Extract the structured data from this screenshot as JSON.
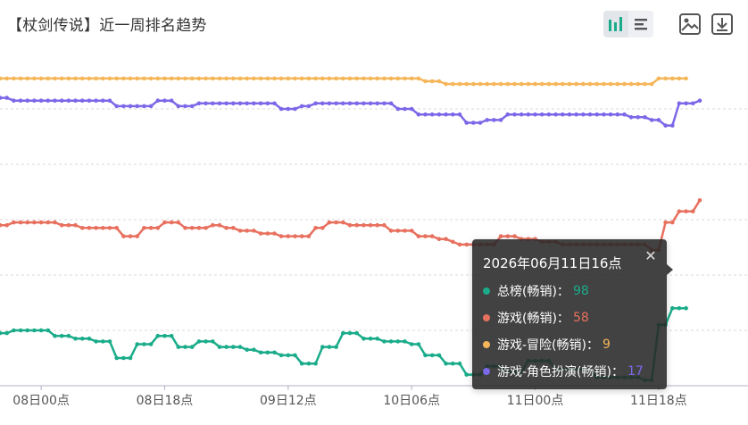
{
  "title": "【杖剑传说】近一周排名趋势",
  "toolbar": {
    "chart_toggle_icons": [
      "bar-chart-icon",
      "list-icon"
    ],
    "image_icon": "image-icon",
    "download_icon": "download-icon"
  },
  "tooltip": {
    "title": "2026年06月11日16点",
    "close_icon": "close-icon",
    "rows": [
      {
        "label": "总榜(畅销)：",
        "value": "98",
        "color": "#1aac8a"
      },
      {
        "label": "游戏(畅销)：",
        "value": "58",
        "color": "#e8705e"
      },
      {
        "label": "游戏-冒险(畅销)：",
        "value": "9",
        "color": "#f5b65a"
      },
      {
        "label": "游戏-角色扮演(畅销)：",
        "value": "17",
        "color": "#7b68e8"
      }
    ]
  },
  "chart_data": {
    "type": "line",
    "title": "【杖剑传说】近一周排名趋势",
    "xlabel": "",
    "ylabel": "",
    "y_inverted": true,
    "ylim": [
      0,
      120
    ],
    "grid": true,
    "legend": "none",
    "x_ticks": [
      "08日00点",
      "08日18点",
      "09日12点",
      "10日06点",
      "11日00点",
      "11日18点"
    ],
    "x_tick_index": [
      6,
      24,
      42,
      60,
      78,
      96
    ],
    "series": [
      {
        "color": "#1aac8a",
        "values": [
          101,
          101,
          100,
          100,
          100,
          100,
          100,
          100,
          102,
          102,
          102,
          103,
          103,
          103,
          104,
          104,
          104,
          110,
          110,
          110,
          105,
          105,
          105,
          102,
          102,
          102,
          106,
          106,
          106,
          104,
          104,
          104,
          106,
          106,
          106,
          106,
          107,
          107,
          108,
          108,
          108,
          109,
          109,
          109,
          112,
          112,
          112,
          106,
          106,
          106,
          101,
          101,
          101,
          103,
          103,
          103,
          104,
          104,
          104,
          104,
          105,
          105,
          109,
          109,
          109,
          112,
          112,
          112,
          116,
          116,
          116,
          113,
          113,
          113,
          115,
          115,
          115,
          111,
          111,
          111,
          111,
          114,
          114,
          114,
          114,
          114,
          114,
          117,
          117,
          117,
          117,
          117,
          117,
          117,
          118,
          118,
          98,
          98,
          92,
          92,
          92
        ]
      },
      {
        "color": "#e8705e",
        "values": [
          62,
          62,
          61,
          61,
          61,
          61,
          61,
          61,
          61,
          62,
          62,
          62,
          63,
          63,
          63,
          63,
          63,
          63,
          66,
          66,
          66,
          63,
          63,
          63,
          61,
          61,
          61,
          63,
          63,
          63,
          63,
          62,
          62,
          63,
          63,
          64,
          64,
          64,
          65,
          65,
          65,
          66,
          66,
          66,
          66,
          66,
          63,
          63,
          61,
          61,
          61,
          62,
          62,
          62,
          62,
          62,
          62,
          64,
          64,
          64,
          64,
          66,
          66,
          66,
          67,
          67,
          68,
          69,
          69,
          69,
          69,
          69,
          69,
          66,
          66,
          66,
          67,
          67,
          67,
          68,
          68,
          68,
          69,
          69,
          69,
          69,
          69,
          69,
          69,
          69,
          69,
          69,
          69,
          69,
          69,
          71,
          71,
          61,
          61,
          57,
          57,
          57,
          53
        ]
      },
      {
        "color": "#f5b65a",
        "values": [
          9,
          9,
          9,
          9,
          9,
          9,
          9,
          9,
          9,
          9,
          9,
          9,
          9,
          9,
          9,
          9,
          9,
          9,
          9,
          9,
          9,
          9,
          9,
          9,
          9,
          9,
          9,
          9,
          9,
          9,
          9,
          9,
          9,
          9,
          9,
          9,
          9,
          9,
          9,
          9,
          9,
          9,
          9,
          9,
          9,
          9,
          9,
          9,
          9,
          9,
          9,
          9,
          9,
          9,
          9,
          9,
          9,
          9,
          9,
          9,
          9,
          9,
          10,
          10,
          10,
          11,
          11,
          11,
          11,
          11,
          11,
          11,
          11,
          11,
          11,
          11,
          11,
          11,
          11,
          11,
          11,
          11,
          11,
          11,
          11,
          11,
          11,
          11,
          11,
          11,
          11,
          11,
          11,
          11,
          11,
          11,
          9,
          9,
          9,
          9,
          9
        ]
      },
      {
        "color": "#7b68e8",
        "values": [
          16,
          16,
          17,
          17,
          17,
          17,
          17,
          17,
          17,
          17,
          17,
          17,
          17,
          17,
          17,
          17,
          17,
          19,
          19,
          19,
          19,
          19,
          19,
          17,
          17,
          17,
          19,
          19,
          19,
          18,
          18,
          18,
          18,
          18,
          18,
          18,
          18,
          18,
          18,
          18,
          18,
          20,
          20,
          20,
          19,
          19,
          18,
          18,
          18,
          18,
          18,
          18,
          18,
          18,
          18,
          18,
          18,
          18,
          20,
          20,
          20,
          22,
          22,
          22,
          22,
          22,
          22,
          22,
          25,
          25,
          25,
          24,
          24,
          24,
          22,
          22,
          22,
          22,
          22,
          22,
          22,
          22,
          22,
          22,
          22,
          22,
          22,
          22,
          22,
          22,
          22,
          22,
          23,
          23,
          23,
          24,
          24,
          26,
          26,
          18,
          18,
          18,
          17
        ]
      }
    ]
  }
}
